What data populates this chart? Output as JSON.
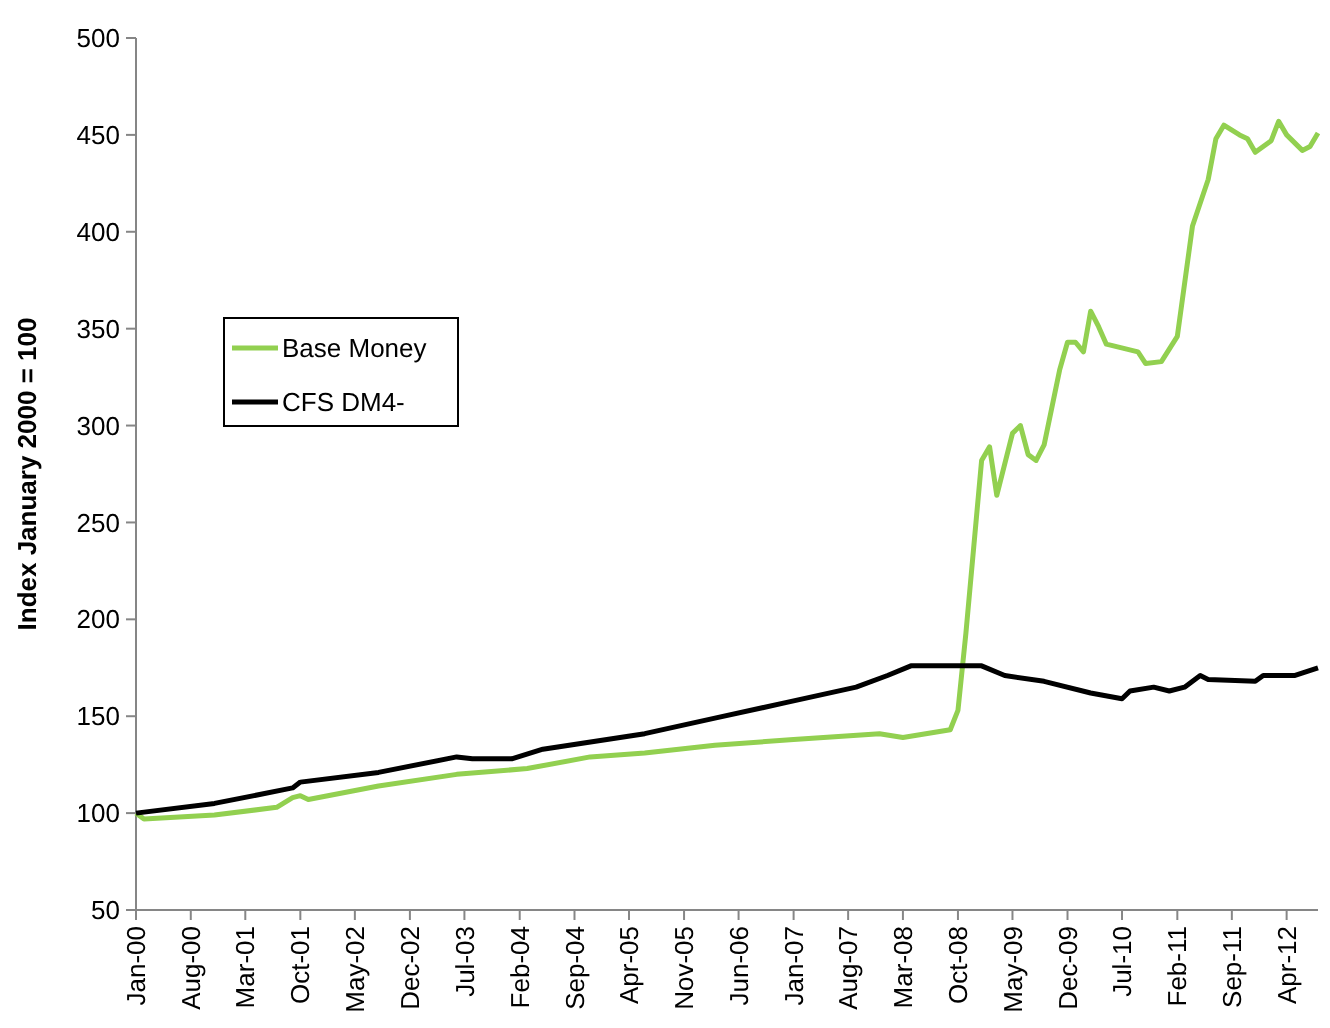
{
  "chart_data": {
    "type": "line",
    "ylabel": "Index January 2000 = 100",
    "xlim": [
      "2000-01",
      "2012-08"
    ],
    "ylim": [
      50,
      500
    ],
    "yticks": [
      50,
      100,
      150,
      200,
      250,
      300,
      350,
      400,
      450,
      500
    ],
    "xticks": [
      {
        "value": "2000-01",
        "label": "Jan-00"
      },
      {
        "value": "2000-08",
        "label": "Aug-00"
      },
      {
        "value": "2001-03",
        "label": "Mar-01"
      },
      {
        "value": "2001-10",
        "label": "Oct-01"
      },
      {
        "value": "2002-05",
        "label": "May-02"
      },
      {
        "value": "2002-12",
        "label": "Dec-02"
      },
      {
        "value": "2003-07",
        "label": "Jul-03"
      },
      {
        "value": "2004-02",
        "label": "Feb-04"
      },
      {
        "value": "2004-09",
        "label": "Sep-04"
      },
      {
        "value": "2005-04",
        "label": "Apr-05"
      },
      {
        "value": "2005-11",
        "label": "Nov-05"
      },
      {
        "value": "2006-06",
        "label": "Jun-06"
      },
      {
        "value": "2007-01",
        "label": "Jan-07"
      },
      {
        "value": "2007-08",
        "label": "Aug-07"
      },
      {
        "value": "2008-03",
        "label": "Mar-08"
      },
      {
        "value": "2008-10",
        "label": "Oct-08"
      },
      {
        "value": "2009-05",
        "label": "May-09"
      },
      {
        "value": "2009-12",
        "label": "Dec-09"
      },
      {
        "value": "2010-07",
        "label": "Jul-10"
      },
      {
        "value": "2011-02",
        "label": "Feb-11"
      },
      {
        "value": "2011-09",
        "label": "Sep-11"
      },
      {
        "value": "2012-04",
        "label": "Apr-12"
      }
    ],
    "grid": false,
    "legend": "left",
    "marker": "none",
    "line_style": "solid",
    "series": [
      {
        "name": "Base Money",
        "color": "#92d050",
        "x": [
          "2000-01",
          "2000-02",
          "2000-11",
          "2001-07",
          "2001-09",
          "2001-10",
          "2001-11",
          "2002-08",
          "2003-06",
          "2004-03",
          "2004-11",
          "2005-06",
          "2006-03",
          "2007-01",
          "2007-12",
          "2008-03",
          "2008-09",
          "2008-10",
          "2008-11",
          "2009-01",
          "2009-02",
          "2009-03",
          "2009-05",
          "2009-06",
          "2009-07",
          "2009-08",
          "2009-09",
          "2009-11",
          "2009-12",
          "2010-01",
          "2010-02",
          "2010-03",
          "2010-04",
          "2010-05",
          "2010-09",
          "2010-10",
          "2010-12",
          "2011-02",
          "2011-04",
          "2011-06",
          "2011-07",
          "2011-08",
          "2011-10",
          "2011-11",
          "2011-12",
          "2012-02",
          "2012-03",
          "2012-04",
          "2012-06",
          "2012-07",
          "2012-08"
        ],
        "values": [
          100,
          97,
          99,
          103,
          108,
          109,
          107,
          114,
          120,
          123,
          129,
          131,
          135,
          138,
          141,
          139,
          143,
          153,
          193,
          282,
          289,
          264,
          296,
          300,
          285,
          282,
          290,
          329,
          343,
          343,
          338,
          359,
          351,
          342,
          338,
          332,
          333,
          346,
          403,
          427,
          448,
          455,
          450,
          448,
          441,
          447,
          457,
          450,
          442,
          444,
          451
        ]
      },
      {
        "name": "CFS DM4-",
        "color": "#000000",
        "x": [
          "2000-01",
          "2000-11",
          "2001-09",
          "2001-10",
          "2002-08",
          "2003-06",
          "2003-08",
          "2004-01",
          "2004-05",
          "2005-06",
          "2006-03",
          "2006-12",
          "2007-09",
          "2008-01",
          "2008-04",
          "2008-08",
          "2009-01",
          "2009-04",
          "2009-09",
          "2010-03",
          "2010-07",
          "2010-08",
          "2010-11",
          "2011-01",
          "2011-03",
          "2011-05",
          "2011-06",
          "2011-12",
          "2012-01",
          "2012-05",
          "2012-08"
        ],
        "values": [
          100,
          105,
          113,
          116,
          121,
          129,
          128,
          128,
          133,
          141,
          149,
          157,
          165,
          171,
          176,
          176,
          176,
          171,
          168,
          162,
          159,
          163,
          165,
          163,
          165,
          171,
          169,
          168,
          171,
          171,
          175
        ]
      }
    ]
  }
}
